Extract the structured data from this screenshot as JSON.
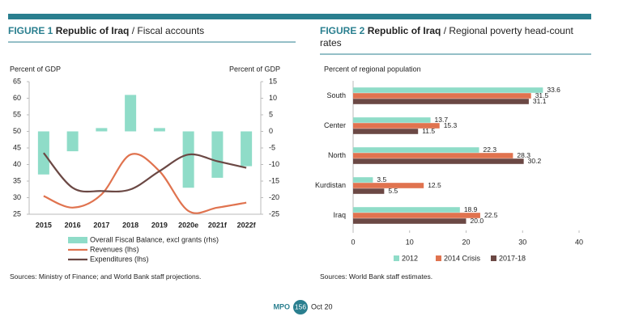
{
  "chart_data": [
    {
      "type": "combo",
      "figure": "FIGURE 1",
      "title": "Republic of Iraq",
      "subtitle": "/ Fiscal accounts",
      "y_label": "Percent of GDP",
      "y2_label": "Percent of GDP",
      "categories": [
        "2015",
        "2016",
        "2017",
        "2018",
        "2019",
        "2020e",
        "2021f",
        "2022f"
      ],
      "series": [
        {
          "name": "Overall Fiscal Balance, excl grants (rhs)",
          "kind": "bar",
          "axis": "y2",
          "color": "#8fdcc8",
          "values": [
            -13,
            -6,
            1,
            11,
            1,
            -17,
            -14,
            -10.5
          ]
        },
        {
          "name": "Revenues (lhs)",
          "kind": "line",
          "color": "#e0734f",
          "values": [
            30.5,
            27,
            31,
            43,
            38,
            26,
            27,
            28.5
          ]
        },
        {
          "name": "Expenditures (lhs)",
          "kind": "line",
          "color": "#6b4844",
          "values": [
            43.5,
            33,
            32,
            32.5,
            38,
            43,
            41,
            39
          ]
        }
      ],
      "ylim": [
        25,
        65
      ],
      "yticks": [
        25,
        30,
        35,
        40,
        45,
        50,
        55,
        60,
        65
      ],
      "y2lim": [
        -25,
        15
      ],
      "y2ticks": [
        -25,
        -20,
        -15,
        -10,
        -5,
        0,
        5,
        10,
        15
      ],
      "source": "Sources: Ministry of Finance; and World Bank staff projections."
    },
    {
      "type": "hbar",
      "figure": "FIGURE 2",
      "title": "Republic of Iraq",
      "subtitle": "/ Regional poverty head-count rates",
      "y_label": "Percent of regional population",
      "categories": [
        "South",
        "Center",
        "North",
        "Kurdistan",
        "Iraq"
      ],
      "series": [
        {
          "name": "2012",
          "color": "#8fdcc8",
          "values": [
            33.6,
            13.7,
            22.3,
            3.5,
            18.9
          ],
          "value_labels": [
            "33.6",
            "13.7",
            "22.3",
            "3.5",
            "18.9"
          ]
        },
        {
          "name": "2014 Crisis",
          "color": "#e0734f",
          "values": [
            31.5,
            15.3,
            28.3,
            12.5,
            22.5
          ],
          "value_labels": [
            "31.5",
            "15.3",
            "28.3",
            "12.5",
            "22.5"
          ]
        },
        {
          "name": "2017-18",
          "color": "#6b4844",
          "values": [
            31.1,
            11.5,
            30.2,
            5.5,
            20.0
          ],
          "value_labels": [
            "31.1",
            "11.5",
            "30.2",
            "5.5",
            "20.0"
          ]
        }
      ],
      "xlim": [
        0,
        40
      ],
      "xticks": [
        0,
        10,
        20,
        30,
        40
      ],
      "source": "Sources: World Bank staff estimates."
    }
  ],
  "footer": {
    "brand": "MPO",
    "page": 156,
    "date": "Oct 20"
  }
}
